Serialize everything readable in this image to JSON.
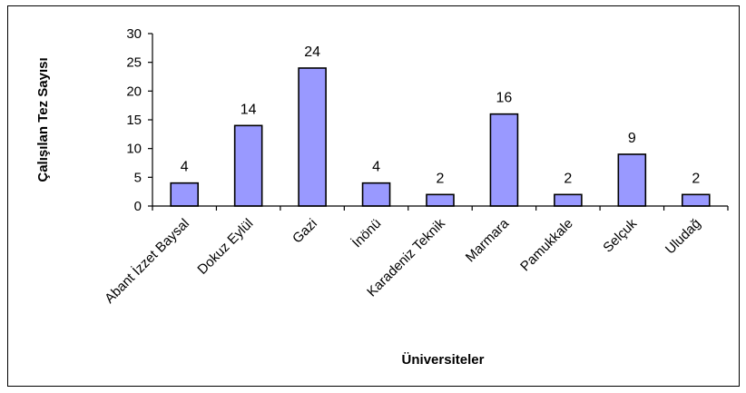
{
  "chart_data": {
    "type": "bar",
    "title": "",
    "xlabel": "Üniversiteler",
    "ylabel": "Çalışılan Tez Sayısı",
    "categories": [
      "Abant İzzet Baysal",
      "Dokuz Eylül",
      "Gazi",
      "İnönü",
      "Karadeniz Teknik",
      "Marmara",
      "Pamukkale",
      "Selçuk",
      "Uludağ"
    ],
    "values": [
      4,
      14,
      24,
      4,
      2,
      16,
      2,
      9,
      2
    ],
    "ylim": [
      0,
      30
    ],
    "yticks": [
      0,
      5,
      10,
      15,
      20,
      25,
      30
    ],
    "grid": false,
    "legend": "none",
    "data_labels": true,
    "colors": {
      "bar_fill": "#9999FF",
      "bar_stroke": "#000000",
      "axis": "#000000"
    }
  }
}
